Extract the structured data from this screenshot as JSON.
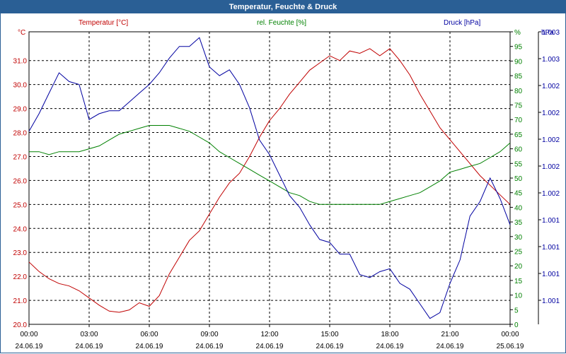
{
  "window": {
    "title": "Temperatur, Feuchte & Druck"
  },
  "colors": {
    "temperature": "#c00000",
    "humidity": "#008000",
    "pressure": "#0000a0",
    "title_bar": "#2a5f95"
  },
  "chart_data": {
    "type": "line",
    "title": "Temperatur, Feuchte & Druck",
    "grid": true,
    "x_ticks": [
      {
        "time": "00:00",
        "date": "24.06.19"
      },
      {
        "time": "03:00",
        "date": "24.06.19"
      },
      {
        "time": "06:00",
        "date": "24.06.19"
      },
      {
        "time": "09:00",
        "date": "24.06.19"
      },
      {
        "time": "12:00",
        "date": "24.06.19"
      },
      {
        "time": "15:00",
        "date": "24.06.19"
      },
      {
        "time": "18:00",
        "date": "24.06.19"
      },
      {
        "time": "21:00",
        "date": "24.06.19"
      },
      {
        "time": "00:00",
        "date": "25.06.19"
      }
    ],
    "x_range_hours": [
      0,
      24
    ],
    "axes": {
      "temperature": {
        "label": "Temperatur [°C]",
        "unit": "°C",
        "range": [
          20.0,
          32.2
        ],
        "position": "left",
        "ticks": [
          "20.0",
          "21.0",
          "22.0",
          "23.0",
          "24.0",
          "25.0",
          "26.0",
          "27.0",
          "28.0",
          "29.0",
          "30.0",
          "31.0"
        ]
      },
      "humidity": {
        "label": "rel. Feuchte [%]",
        "unit": "%",
        "range": [
          0,
          100
        ],
        "position": "right-inner",
        "ticks": [
          "0",
          "5",
          "10",
          "15",
          "20",
          "25",
          "30",
          "35",
          "40",
          "45",
          "50",
          "55",
          "60",
          "65",
          "70",
          "75",
          "80",
          "85",
          "90",
          "95",
          "%"
        ]
      },
      "pressure": {
        "label": "Druck [hPa]",
        "unit": "hPa",
        "position": "right-outer",
        "ticks": [
          "1.001",
          "1.001",
          "1.001",
          "1.001",
          "1.002",
          "1.002",
          "1.002",
          "1.002",
          "1.002",
          "1.003",
          "1.003"
        ]
      }
    },
    "series": [
      {
        "name": "Temperatur [°C]",
        "axis": "temperature",
        "x": [
          0,
          0.5,
          1,
          1.5,
          2,
          2.5,
          3,
          3.5,
          4,
          4.5,
          5,
          5.5,
          6,
          6.5,
          7,
          7.5,
          8,
          8.5,
          9,
          9.5,
          10,
          10.5,
          11,
          11.5,
          12,
          12.5,
          13,
          13.5,
          14,
          14.5,
          15,
          15.5,
          16,
          16.5,
          17,
          17.5,
          18,
          18.5,
          19,
          19.5,
          20,
          20.5,
          21,
          21.5,
          22,
          22.5,
          23,
          23.5,
          24
        ],
        "y": [
          22.6,
          22.2,
          21.9,
          21.7,
          21.6,
          21.4,
          21.1,
          20.8,
          20.55,
          20.5,
          20.6,
          20.9,
          20.75,
          21.2,
          22.1,
          22.8,
          23.5,
          23.9,
          24.6,
          25.3,
          25.9,
          26.3,
          27.0,
          27.8,
          28.5,
          29.0,
          29.6,
          30.1,
          30.6,
          30.9,
          31.2,
          31.0,
          31.4,
          31.3,
          31.5,
          31.2,
          31.5,
          31.0,
          30.4,
          29.6,
          28.9,
          28.2,
          27.7,
          27.2,
          26.7,
          26.2,
          25.8,
          25.4,
          25.0
        ]
      },
      {
        "name": "rel. Feuchte [%]",
        "axis": "humidity",
        "x": [
          0,
          0.5,
          1,
          1.5,
          2,
          2.5,
          3,
          3.5,
          4,
          4.5,
          5,
          5.5,
          6,
          6.5,
          7,
          7.5,
          8,
          8.5,
          9,
          9.5,
          10,
          10.5,
          11,
          11.5,
          12,
          12.5,
          13,
          13.5,
          14,
          14.5,
          15,
          15.5,
          16,
          16.5,
          17,
          17.5,
          18,
          18.5,
          19,
          19.5,
          20,
          20.5,
          21,
          21.5,
          22,
          22.5,
          23,
          23.5,
          24
        ],
        "y": [
          59,
          59,
          58,
          59,
          59,
          59,
          60,
          61,
          63,
          65,
          66,
          67,
          68,
          68,
          68,
          67,
          66,
          64,
          62,
          59,
          57,
          55,
          53,
          51,
          49,
          47,
          45,
          44,
          42,
          41,
          41,
          41,
          41,
          41,
          41,
          41,
          42,
          43,
          44,
          45,
          47,
          49,
          52,
          53,
          54,
          55,
          57,
          59,
          62
        ]
      },
      {
        "name": "Druck [hPa]",
        "axis": "pressure",
        "x": [
          0,
          0.5,
          1,
          1.5,
          2,
          2.5,
          3,
          3.5,
          4,
          4.5,
          5,
          5.5,
          6,
          6.5,
          7,
          7.5,
          8,
          8.5,
          9,
          9.5,
          10,
          10.5,
          11,
          11.5,
          12,
          12.5,
          13,
          13.5,
          14,
          14.5,
          15,
          15.5,
          16,
          16.5,
          17,
          17.5,
          18,
          18.5,
          19,
          19.5,
          20,
          20.5,
          21,
          21.5,
          22,
          22.5,
          23,
          23.5,
          24
        ],
        "y": [
          0.66,
          0.72,
          0.79,
          0.86,
          0.83,
          0.82,
          0.7,
          0.72,
          0.73,
          0.73,
          0.76,
          0.79,
          0.82,
          0.86,
          0.91,
          0.95,
          0.95,
          0.98,
          0.88,
          0.85,
          0.87,
          0.82,
          0.74,
          0.63,
          0.58,
          0.51,
          0.44,
          0.4,
          0.34,
          0.29,
          0.28,
          0.24,
          0.24,
          0.17,
          0.16,
          0.18,
          0.19,
          0.14,
          0.12,
          0.07,
          0.02,
          0.04,
          0.14,
          0.22,
          0.37,
          0.42,
          0.5,
          0.43,
          0.34
        ]
      }
    ]
  }
}
